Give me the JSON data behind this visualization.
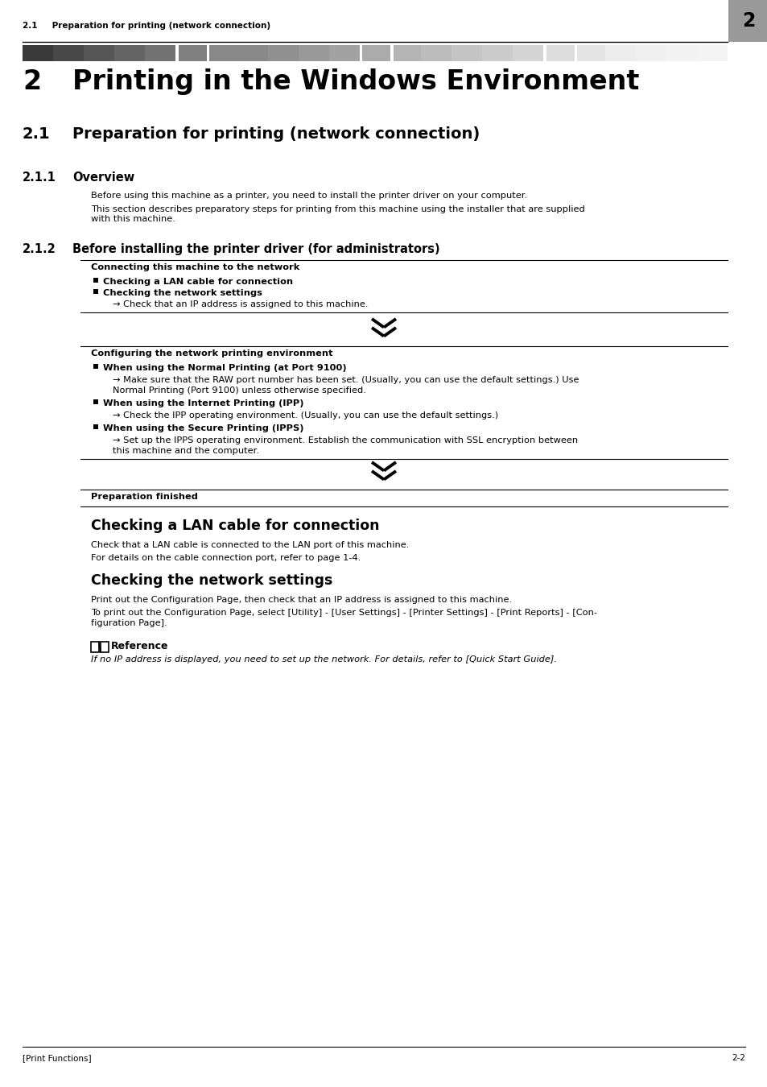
{
  "page_bg": "#ffffff",
  "header_text_left": "2.1     Preparation for printing (network connection)",
  "header_num": "2",
  "chapter_num": "2",
  "chapter_title": "Printing in the Windows Environment",
  "section_num": "2.1",
  "section_title": "Preparation for printing (network connection)",
  "subsection1_num": "2.1.1",
  "subsection1_title": "Overview",
  "overview_p1": "Before using this machine as a printer, you need to install the printer driver on your computer.",
  "overview_p2a": "This section describes preparatory steps for printing from this machine using the installer that are supplied",
  "overview_p2b": "with this machine.",
  "subsection2_num": "2.1.2",
  "subsection2_title": "Before installing the printer driver (for administrators)",
  "box1_title": "Connecting this machine to the network",
  "box1_bullet1": "Checking a LAN cable for connection",
  "box1_bullet2": "Checking the network settings",
  "box1_arrow": "→ Check that an IP address is assigned to this machine.",
  "box2_title": "Configuring the network printing environment",
  "box2_b1": "When using the Normal Printing (at Port 9100)",
  "box2_b1_arrow1": "→ Make sure that the RAW port number has been set. (Usually, you can use the default settings.) Use",
  "box2_b1_arrow2": "Normal Printing (Port 9100) unless otherwise specified.",
  "box2_b2": "When using the Internet Printing (IPP)",
  "box2_b2_arrow": "→ Check the IPP operating environment. (Usually, you can use the default settings.)",
  "box2_b3": "When using the Secure Printing (IPPS)",
  "box2_b3_arrow1": "→ Set up the IPPS operating environment. Establish the communication with SSL encryption between",
  "box2_b3_arrow2": "this machine and the computer.",
  "box3_title": "Preparation finished",
  "lan_title": "Checking a LAN cable for connection",
  "lan_p1": "Check that a LAN cable is connected to the LAN port of this machine.",
  "lan_p2": "For details on the cable connection port, refer to page 1-4.",
  "net_title": "Checking the network settings",
  "net_p1": "Print out the Configuration Page, then check that an IP address is assigned to this machine.",
  "net_p2a": "To print out the Configuration Page, select [Utility] - [User Settings] - [Printer Settings] - [Print Reports] - [Con-",
  "net_p2b": "figuration Page].",
  "ref_label": "Reference",
  "ref_italic": "If no IP address is displayed, you need to set up the network. For details, refer to [Quick Start Guide].",
  "footer_left": "[Print Functions]",
  "footer_right": "2-2",
  "gradient_colors": [
    "#3a3a3a",
    "#484848",
    "#565656",
    "#646464",
    "#727272",
    "#808080",
    "#888888",
    "#888888",
    "#909090",
    "#999999",
    "#a2a2a2",
    "#ababab",
    "#b4b4b4",
    "#bcbcbc",
    "#c4c4c4",
    "#cccccc",
    "#d4d4d4",
    "#dcdcdc",
    "#e4e4e4",
    "#ececec",
    "#f0f0f0",
    "#f2f2f2",
    "#f4f4f4"
  ],
  "sep_white_positions": [
    5,
    6,
    11,
    12,
    17,
    18
  ]
}
